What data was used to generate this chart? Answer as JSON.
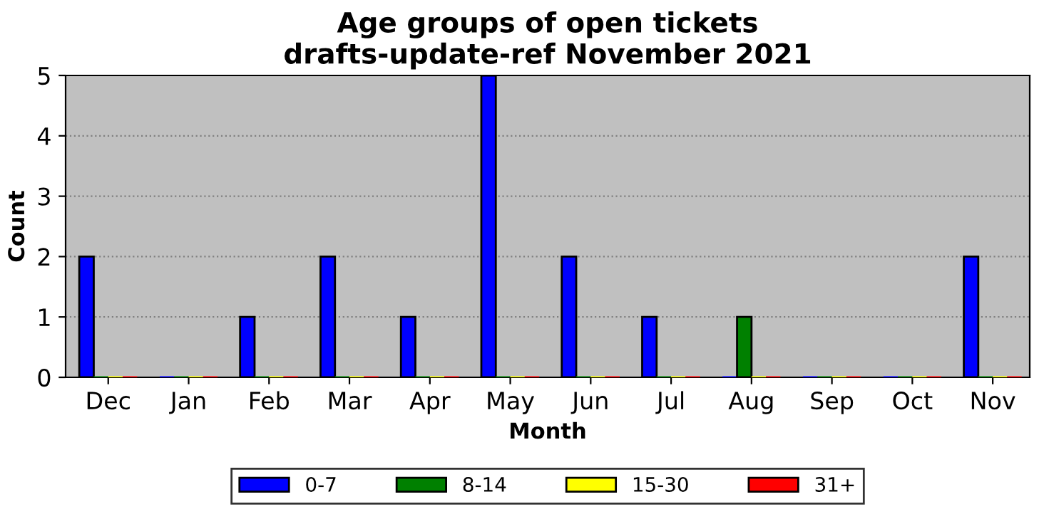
{
  "chart_data": {
    "type": "bar",
    "title": "Age groups of open tickets\ndrafts-update-ref November 2021",
    "xlabel": "Month",
    "ylabel": "Count",
    "categories": [
      "Dec",
      "Jan",
      "Feb",
      "Mar",
      "Apr",
      "May",
      "Jun",
      "Jul",
      "Aug",
      "Sep",
      "Oct",
      "Nov"
    ],
    "series": [
      {
        "name": "0-7",
        "color": "#0000ff",
        "values": [
          2,
          0,
          1,
          2,
          1,
          5,
          2,
          1,
          0,
          0,
          0,
          2
        ]
      },
      {
        "name": "8-14",
        "color": "#008000",
        "values": [
          0,
          0,
          0,
          0,
          0,
          0,
          0,
          0,
          1,
          0,
          0,
          0
        ]
      },
      {
        "name": "15-30",
        "color": "#ffff00",
        "values": [
          0,
          0,
          0,
          0,
          0,
          0,
          0,
          0,
          0,
          0,
          0,
          0
        ]
      },
      {
        "name": "31+",
        "color": "#ff0000",
        "values": [
          0,
          0,
          0,
          0,
          0,
          0,
          0,
          0,
          0,
          0,
          0,
          0
        ]
      }
    ],
    "ylim": [
      0,
      5
    ],
    "yticks": [
      0,
      1,
      2,
      3,
      4,
      5
    ],
    "grid": "y",
    "legend": "bottom"
  }
}
